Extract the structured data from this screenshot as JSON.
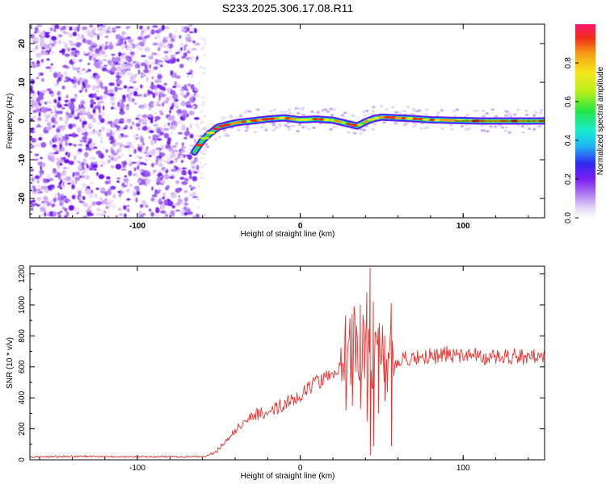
{
  "figure_title": "S233.2025.306.17.08.R11",
  "chart_data": [
    {
      "type": "heatmap",
      "title": "S233.2025.306.17.08.R11",
      "xlabel": "Height of straight line (km)",
      "ylabel": "Frequency (Hz)",
      "xlim": [
        -166,
        150
      ],
      "ylim": [
        -25,
        25
      ],
      "x_ticks": [
        -100,
        0,
        100
      ],
      "x_tick_labels": [
        "-100",
        "0",
        "100"
      ],
      "y_ticks": [
        -20,
        -10,
        0,
        10,
        20
      ],
      "y_tick_labels": [
        "-20",
        "-10",
        "0",
        "10",
        "20"
      ],
      "noise_region_x": [
        -166,
        -63
      ],
      "signal_ridge": {
        "x": [
          -65,
          -60,
          -55,
          -50,
          -45,
          -40,
          -35,
          -30,
          -20,
          -10,
          0,
          10,
          20,
          30,
          35,
          40,
          45,
          50,
          60,
          70,
          80,
          90,
          100,
          110,
          120,
          130,
          140,
          150
        ],
        "frequency": [
          -8,
          -5,
          -3,
          -1.5,
          -1,
          -0.5,
          -0.2,
          0,
          0.5,
          0.8,
          0.3,
          0.5,
          0.2,
          -0.8,
          -1.3,
          -0.2,
          0.6,
          1.0,
          0.8,
          0.6,
          0.3,
          0.2,
          0.1,
          0,
          0,
          0,
          0,
          0
        ]
      },
      "colorbar": {
        "label": "Normalized spectral amplitude",
        "range": [
          0,
          1
        ],
        "ticks": [
          0.0,
          0.2,
          0.4,
          0.6,
          0.8
        ],
        "tick_labels": [
          "0.0",
          "0.2",
          "0.4",
          "0.6",
          "0.8"
        ]
      }
    },
    {
      "type": "line",
      "xlabel": "Height of straight line (km)",
      "ylabel": "SNR (10 * v/v)",
      "xlim": [
        -166,
        150
      ],
      "ylim": [
        0,
        1250
      ],
      "x_ticks": [
        -100,
        0,
        100
      ],
      "x_tick_labels": [
        "-100",
        "0",
        "100"
      ],
      "y_ticks": [
        0,
        200,
        400,
        600,
        800,
        1000,
        1200
      ],
      "y_tick_labels": [
        "0",
        "200",
        "400",
        "600",
        "800",
        "1000",
        "1200"
      ],
      "series": [
        {
          "name": "SNR",
          "color": "#e8322e",
          "x": [
            -166,
            -150,
            -130,
            -110,
            -90,
            -70,
            -60,
            -55,
            -50,
            -45,
            -40,
            -35,
            -30,
            -25,
            -20,
            -15,
            -10,
            -5,
            0,
            5,
            10,
            15,
            20,
            25,
            28,
            32,
            36,
            40,
            43,
            46,
            50,
            55,
            60,
            70,
            80,
            90,
            100,
            110,
            120,
            130,
            140,
            150
          ],
          "values": [
            18,
            20,
            22,
            20,
            21,
            19,
            22,
            30,
            70,
            130,
            190,
            240,
            280,
            300,
            310,
            330,
            360,
            400,
            420,
            450,
            500,
            540,
            580,
            620,
            700,
            750,
            700,
            760,
            680,
            720,
            700,
            650,
            640,
            660,
            670,
            680,
            660,
            670,
            660,
            670,
            665,
            670
          ]
        }
      ],
      "spikes": [
        {
          "x": 28,
          "high": 930,
          "low": 320
        },
        {
          "x": 32,
          "high": 940,
          "low": 350
        },
        {
          "x": 37,
          "high": 1000,
          "low": 330
        },
        {
          "x": 41,
          "high": 1080,
          "low": 250
        },
        {
          "x": 43,
          "high": 1240,
          "low": 30
        },
        {
          "x": 45,
          "high": 1020,
          "low": 90
        },
        {
          "x": 48,
          "high": 850,
          "low": 300
        },
        {
          "x": 52,
          "high": 800,
          "low": 380
        },
        {
          "x": 56,
          "high": 1010,
          "low": 90
        }
      ]
    }
  ]
}
